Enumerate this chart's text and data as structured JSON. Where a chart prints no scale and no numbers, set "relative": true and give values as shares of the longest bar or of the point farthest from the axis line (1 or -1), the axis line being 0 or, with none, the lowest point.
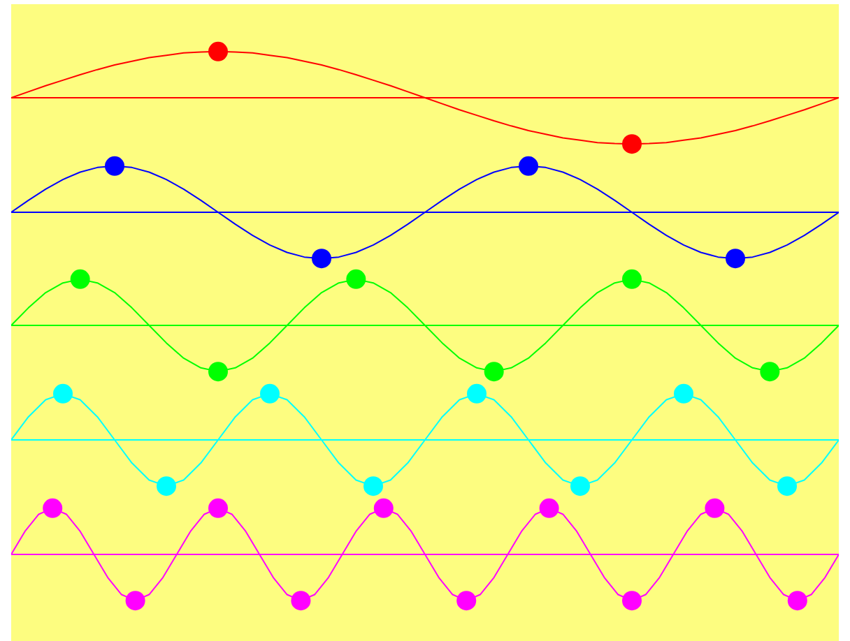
{
  "chart_data": [
    {
      "type": "line",
      "relative": true,
      "tick_labels": false,
      "categories": [
        null,
        null,
        null,
        null,
        null,
        null,
        null,
        null,
        null,
        null,
        null,
        null,
        null,
        null,
        null,
        null,
        null,
        null,
        null,
        null,
        null,
        null,
        null,
        null,
        null,
        null,
        null,
        null,
        null,
        null,
        null,
        null,
        null,
        null,
        null,
        null,
        null,
        null,
        null,
        null,
        null,
        null,
        null,
        null,
        null,
        null,
        null,
        null,
        null
      ],
      "ref_lines": [
        {
          "axis": "y",
          "value": 0,
          "color": "#ff0000"
        }
      ],
      "series": [
        {
          "color": "#ff0000",
          "values": [
            0,
            0.13,
            0.26,
            0.38,
            0.5,
            0.61,
            0.71,
            0.79,
            0.87,
            0.92,
            0.97,
            0.99,
            1,
            0.99,
            0.97,
            0.92,
            0.87,
            0.79,
            0.71,
            0.61,
            0.5,
            0.38,
            0.26,
            0.13,
            0,
            -0.13,
            -0.26,
            -0.38,
            -0.5,
            -0.61,
            -0.71,
            -0.79,
            -0.87,
            -0.92,
            -0.97,
            -0.99,
            -1,
            -0.99,
            -0.97,
            -0.92,
            -0.87,
            -0.79,
            -0.71,
            -0.61,
            -0.5,
            -0.38,
            -0.26,
            -0.13,
            0
          ]
        },
        {
          "marker": "circle",
          "color": "#ff0000",
          "values": [
            null,
            null,
            null,
            null,
            null,
            null,
            null,
            null,
            null,
            null,
            null,
            null,
            1,
            null,
            null,
            null,
            null,
            null,
            null,
            null,
            null,
            null,
            null,
            null,
            null,
            null,
            null,
            null,
            null,
            null,
            null,
            null,
            null,
            null,
            null,
            null,
            -1,
            null,
            null,
            null,
            null,
            null,
            null,
            null,
            null,
            null,
            null,
            null,
            null
          ]
        }
      ]
    },
    {
      "type": "line",
      "relative": true,
      "tick_labels": false,
      "categories": [
        null,
        null,
        null,
        null,
        null,
        null,
        null,
        null,
        null,
        null,
        null,
        null,
        null,
        null,
        null,
        null,
        null,
        null,
        null,
        null,
        null,
        null,
        null,
        null,
        null,
        null,
        null,
        null,
        null,
        null,
        null,
        null,
        null,
        null,
        null,
        null,
        null,
        null,
        null,
        null,
        null,
        null,
        null,
        null,
        null,
        null,
        null,
        null,
        null
      ],
      "ref_lines": [
        {
          "axis": "y",
          "value": 0,
          "color": "#0000ff"
        }
      ],
      "series": [
        {
          "color": "#0000ff",
          "values": [
            0,
            0.26,
            0.5,
            0.71,
            0.87,
            0.97,
            1,
            0.97,
            0.87,
            0.71,
            0.5,
            0.26,
            0,
            -0.26,
            -0.5,
            -0.71,
            -0.87,
            -0.97,
            -1,
            -0.97,
            -0.87,
            -0.71,
            -0.5,
            -0.26,
            0,
            0.26,
            0.5,
            0.71,
            0.87,
            0.97,
            1,
            0.97,
            0.87,
            0.71,
            0.5,
            0.26,
            0,
            -0.26,
            -0.5,
            -0.71,
            -0.87,
            -0.97,
            -1,
            -0.97,
            -0.87,
            -0.71,
            -0.5,
            -0.26,
            0
          ]
        },
        {
          "marker": "circle",
          "color": "#0000ff",
          "values": [
            null,
            null,
            null,
            null,
            null,
            null,
            1,
            null,
            null,
            null,
            null,
            null,
            null,
            null,
            null,
            null,
            null,
            null,
            -1,
            null,
            null,
            null,
            null,
            null,
            null,
            null,
            null,
            null,
            null,
            null,
            1,
            null,
            null,
            null,
            null,
            null,
            null,
            null,
            null,
            null,
            null,
            null,
            -1,
            null,
            null,
            null,
            null,
            null,
            null
          ]
        }
      ]
    },
    {
      "type": "line",
      "relative": true,
      "tick_labels": false,
      "categories": [
        null,
        null,
        null,
        null,
        null,
        null,
        null,
        null,
        null,
        null,
        null,
        null,
        null,
        null,
        null,
        null,
        null,
        null,
        null,
        null,
        null,
        null,
        null,
        null,
        null,
        null,
        null,
        null,
        null,
        null,
        null,
        null,
        null,
        null,
        null,
        null,
        null,
        null,
        null,
        null,
        null,
        null,
        null,
        null,
        null,
        null,
        null,
        null,
        null
      ],
      "ref_lines": [
        {
          "axis": "y",
          "value": 0,
          "color": "#00ff00"
        }
      ],
      "series": [
        {
          "color": "#00ff00",
          "values": [
            0,
            0.38,
            0.71,
            0.92,
            1,
            0.92,
            0.71,
            0.38,
            0,
            -0.38,
            -0.71,
            -0.92,
            -1,
            -0.92,
            -0.71,
            -0.38,
            0,
            0.38,
            0.71,
            0.92,
            1,
            0.92,
            0.71,
            0.38,
            0,
            -0.38,
            -0.71,
            -0.92,
            -1,
            -0.92,
            -0.71,
            -0.38,
            0,
            0.38,
            0.71,
            0.92,
            1,
            0.92,
            0.71,
            0.38,
            0,
            -0.38,
            -0.71,
            -0.92,
            -1,
            -0.92,
            -0.71,
            -0.38,
            0
          ]
        },
        {
          "marker": "circle",
          "color": "#00ff00",
          "values": [
            null,
            null,
            null,
            null,
            1,
            null,
            null,
            null,
            null,
            null,
            null,
            null,
            -1,
            null,
            null,
            null,
            null,
            null,
            null,
            null,
            1,
            null,
            null,
            null,
            null,
            null,
            null,
            null,
            -1,
            null,
            null,
            null,
            null,
            null,
            null,
            null,
            1,
            null,
            null,
            null,
            null,
            null,
            null,
            null,
            -1,
            null,
            null,
            null,
            null
          ]
        }
      ]
    },
    {
      "type": "line",
      "relative": true,
      "tick_labels": false,
      "categories": [
        null,
        null,
        null,
        null,
        null,
        null,
        null,
        null,
        null,
        null,
        null,
        null,
        null,
        null,
        null,
        null,
        null,
        null,
        null,
        null,
        null,
        null,
        null,
        null,
        null,
        null,
        null,
        null,
        null,
        null,
        null,
        null,
        null,
        null,
        null,
        null,
        null,
        null,
        null,
        null,
        null,
        null,
        null,
        null,
        null,
        null,
        null,
        null,
        null
      ],
      "ref_lines": [
        {
          "axis": "y",
          "value": 0,
          "color": "#00ffff"
        }
      ],
      "series": [
        {
          "color": "#00ffff",
          "values": [
            0,
            0.5,
            0.87,
            1,
            0.87,
            0.5,
            0,
            -0.5,
            -0.87,
            -1,
            -0.87,
            -0.5,
            0,
            0.5,
            0.87,
            1,
            0.87,
            0.5,
            0,
            -0.5,
            -0.87,
            -1,
            -0.87,
            -0.5,
            0,
            0.5,
            0.87,
            1,
            0.87,
            0.5,
            0,
            -0.5,
            -0.87,
            -1,
            -0.87,
            -0.5,
            0,
            0.5,
            0.87,
            1,
            0.87,
            0.5,
            0,
            -0.5,
            -0.87,
            -1,
            -0.87,
            -0.5,
            0
          ]
        },
        {
          "marker": "circle",
          "color": "#00ffff",
          "values": [
            null,
            null,
            null,
            1,
            null,
            null,
            null,
            null,
            null,
            -1,
            null,
            null,
            null,
            null,
            null,
            1,
            null,
            null,
            null,
            null,
            null,
            -1,
            null,
            null,
            null,
            null,
            null,
            1,
            null,
            null,
            null,
            null,
            null,
            -1,
            null,
            null,
            null,
            null,
            null,
            1,
            null,
            null,
            null,
            null,
            null,
            -1,
            null,
            null,
            null
          ]
        }
      ]
    },
    {
      "type": "line",
      "relative": true,
      "tick_labels": false,
      "categories": [
        null,
        null,
        null,
        null,
        null,
        null,
        null,
        null,
        null,
        null,
        null,
        null,
        null,
        null,
        null,
        null,
        null,
        null,
        null,
        null,
        null,
        null,
        null,
        null,
        null,
        null,
        null,
        null,
        null,
        null,
        null,
        null,
        null,
        null,
        null,
        null,
        null,
        null,
        null,
        null,
        null,
        null,
        null,
        null,
        null,
        null,
        null,
        null,
        null,
        null,
        null,
        null,
        null,
        null,
        null,
        null,
        null,
        null,
        null,
        null,
        null
      ],
      "ref_lines": [
        {
          "axis": "y",
          "value": 0,
          "color": "#ff00ff"
        }
      ],
      "series": [
        {
          "color": "#ff00ff",
          "values": [
            0,
            0.5,
            0.87,
            1,
            0.87,
            0.5,
            0,
            -0.5,
            -0.87,
            -1,
            -0.87,
            -0.5,
            0,
            0.5,
            0.87,
            1,
            0.87,
            0.5,
            0,
            -0.5,
            -0.87,
            -1,
            -0.87,
            -0.5,
            0,
            0.5,
            0.87,
            1,
            0.87,
            0.5,
            0,
            -0.5,
            -0.87,
            -1,
            -0.87,
            -0.5,
            0,
            0.5,
            0.87,
            1,
            0.87,
            0.5,
            0,
            -0.5,
            -0.87,
            -1,
            -0.87,
            -0.5,
            0,
            0.5,
            0.87,
            1,
            0.87,
            0.5,
            0,
            -0.5,
            -0.87,
            -1,
            -0.87,
            -0.5,
            0
          ]
        },
        {
          "marker": "circle",
          "color": "#ff00ff",
          "values": [
            null,
            null,
            null,
            1,
            null,
            null,
            null,
            null,
            null,
            -1,
            null,
            null,
            null,
            null,
            null,
            1,
            null,
            null,
            null,
            null,
            null,
            -1,
            null,
            null,
            null,
            null,
            null,
            1,
            null,
            null,
            null,
            null,
            null,
            -1,
            null,
            null,
            null,
            null,
            null,
            1,
            null,
            null,
            null,
            null,
            null,
            -1,
            null,
            null,
            null,
            null,
            null,
            1,
            null,
            null,
            null,
            null,
            null,
            -1,
            null,
            null,
            null
          ]
        }
      ]
    }
  ]
}
